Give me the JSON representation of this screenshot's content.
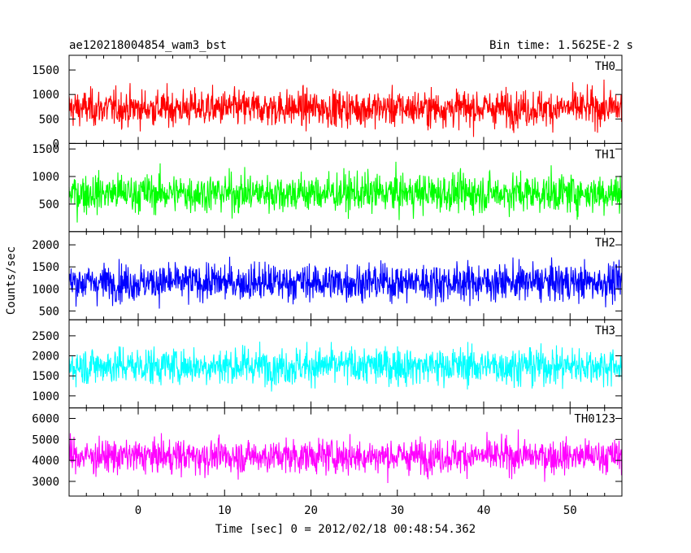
{
  "chart_data": {
    "type": "line",
    "title": "ae120218004854_wam3_bst",
    "subtitle": "Bin time: 1.5625E-2 s",
    "xlabel": "Time [sec] 0 = 2012/02/18 00:48:54.362",
    "ylabel": "Counts/sec",
    "x_range": [
      -8,
      56
    ],
    "x_ticks": [
      0,
      10,
      20,
      30,
      40,
      50
    ],
    "x_tick_labels": [
      "0",
      "10",
      "20",
      "30",
      "40",
      "50"
    ],
    "legend": "none",
    "grid": false,
    "panels": [
      {
        "name": "TH0",
        "color": "#ff0000",
        "ylim": [
          0,
          1800
        ],
        "y_ticks": [
          0,
          500,
          1000,
          1500
        ],
        "y_tick_labels": [
          "0",
          "500",
          "1000",
          "1500"
        ],
        "x_start": -8,
        "x_end": 56,
        "mean": 720,
        "low": 300,
        "high": 1400
      },
      {
        "name": "TH1",
        "color": "#00ff00",
        "ylim": [
          0,
          1600
        ],
        "y_ticks": [
          500,
          1000,
          1500
        ],
        "y_tick_labels": [
          "500",
          "1000",
          "1500"
        ],
        "x_start": -8,
        "x_end": 56,
        "mean": 700,
        "low": 300,
        "high": 1350
      },
      {
        "name": "TH2",
        "color": "#0000ff",
        "ylim": [
          300,
          2300
        ],
        "y_ticks": [
          500,
          1000,
          1500,
          2000
        ],
        "y_tick_labels": [
          "500",
          "1000",
          "1500",
          "2000"
        ],
        "x_start": -8,
        "x_end": 56,
        "mean": 1150,
        "low": 550,
        "high": 1800
      },
      {
        "name": "TH3",
        "color": "#00ffff",
        "ylim": [
          700,
          2900
        ],
        "y_ticks": [
          1000,
          1500,
          2000,
          2500
        ],
        "y_tick_labels": [
          "1000",
          "1500",
          "2000",
          "2500"
        ],
        "x_start": -8,
        "x_end": 56,
        "mean": 1750,
        "low": 1000,
        "high": 2400
      },
      {
        "name": "TH0123",
        "color": "#ff00ff",
        "ylim": [
          2300,
          6500
        ],
        "y_ticks": [
          3000,
          4000,
          5000,
          6000
        ],
        "y_tick_labels": [
          "3000",
          "4000",
          "5000",
          "6000"
        ],
        "x_start": -8,
        "x_end": 56,
        "mean": 4200,
        "low": 3000,
        "high": 5400
      }
    ]
  }
}
